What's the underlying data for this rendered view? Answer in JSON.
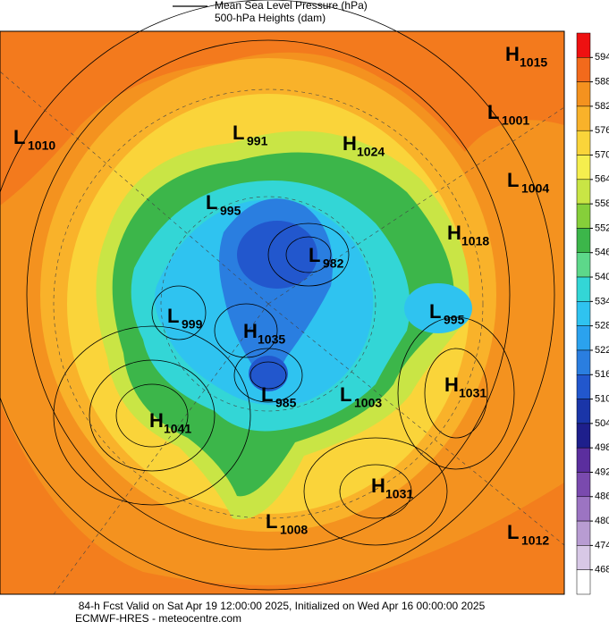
{
  "legend": {
    "line1": "Mean Sea Level Pressure (hPa)",
    "line2": "500-hPa Heights (dam)"
  },
  "colorbar": {
    "ticks": [
      594,
      588,
      582,
      576,
      570,
      564,
      558,
      552,
      546,
      540,
      534,
      528,
      522,
      516,
      510,
      504,
      498,
      492,
      486,
      480,
      474,
      468
    ],
    "colors": [
      "#ee1111",
      "#f26a1c",
      "#f4921f",
      "#f9b22a",
      "#fad43a",
      "#f5ee4e",
      "#c9e545",
      "#86cf3a",
      "#3cb64a",
      "#5dd88a",
      "#33d6d6",
      "#2fc3f0",
      "#2ba2ee",
      "#2a7ee0",
      "#2257cd",
      "#1a35a8",
      "#1e1f8c",
      "#5b2e9e",
      "#7a4aae",
      "#9c74c2",
      "#b89cd2",
      "#d8c8e6",
      "#ffffff"
    ]
  },
  "centers": [
    {
      "type": "H",
      "value": 1015
    },
    {
      "type": "L",
      "value": 1001
    },
    {
      "type": "L",
      "value": 1010
    },
    {
      "type": "L",
      "value": 991
    },
    {
      "type": "H",
      "value": 1024
    },
    {
      "type": "L",
      "value": 1004
    },
    {
      "type": "L",
      "value": 995
    },
    {
      "type": "H",
      "value": 1018
    },
    {
      "type": "L",
      "value": 982
    },
    {
      "type": "L",
      "value": 999
    },
    {
      "type": "H",
      "value": 1035
    },
    {
      "type": "L",
      "value": 995
    },
    {
      "type": "H",
      "value": 1031
    },
    {
      "type": "L",
      "value": 985
    },
    {
      "type": "L",
      "value": 1003
    },
    {
      "type": "H",
      "value": 1041
    },
    {
      "type": "H",
      "value": 1031
    },
    {
      "type": "L",
      "value": 1008
    },
    {
      "type": "L",
      "value": 1012
    }
  ],
  "footer": {
    "line1": "84-h Fcst Valid on Sat Apr 19 12:00:00 2025, Initialized on Wed Apr 16 00:00:00 2025",
    "line2": "ECMWF-HRES - meteocentre.com"
  }
}
